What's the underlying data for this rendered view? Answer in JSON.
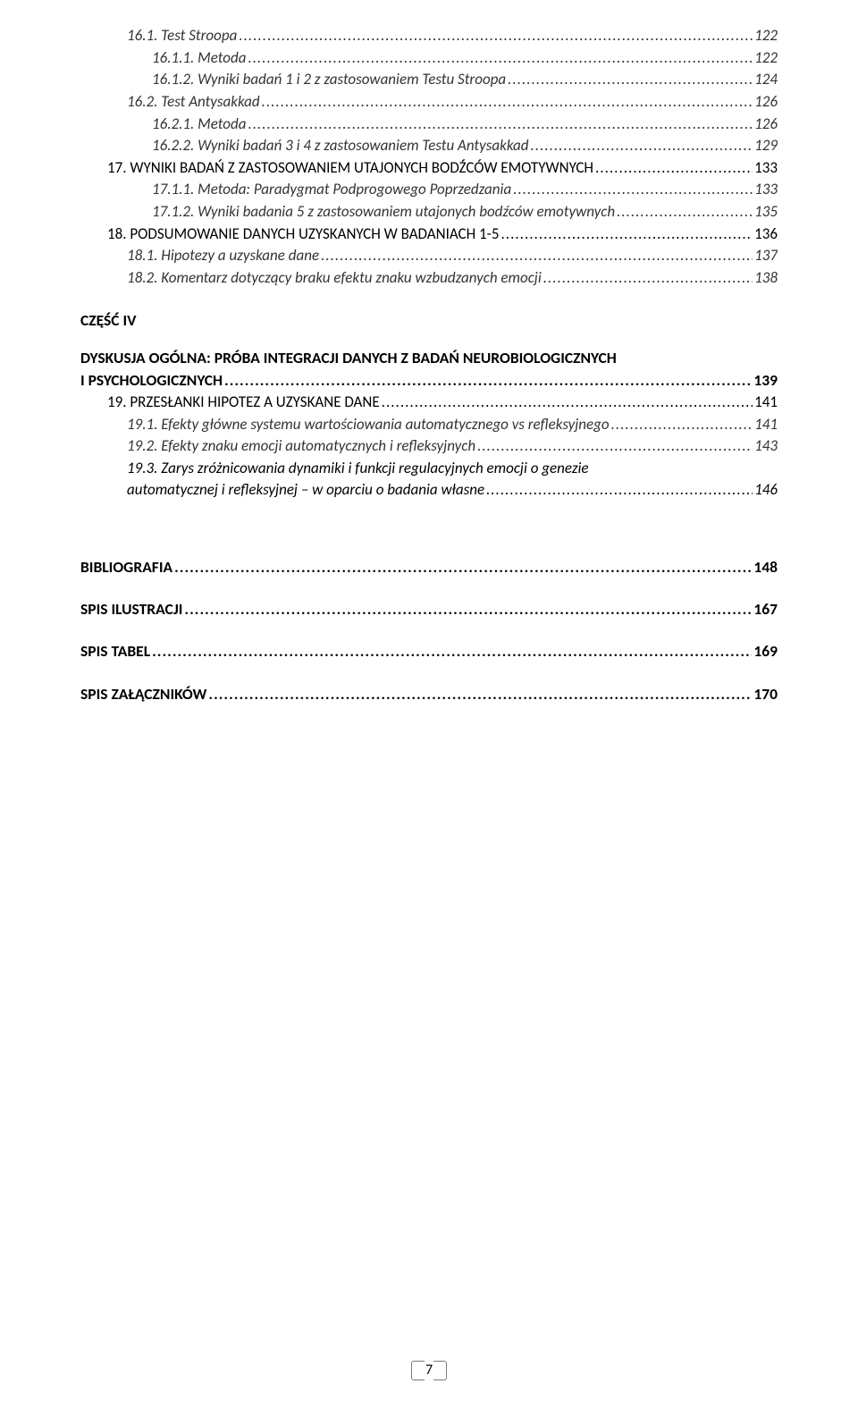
{
  "entries": [
    {
      "level": "lvl-2",
      "label": "16.1.   Test Stroopa",
      "page": "122"
    },
    {
      "level": "lvl-2",
      "label": "16.1.1.   Metoda",
      "page": "122",
      "indent_extra": 28
    },
    {
      "level": "lvl-2",
      "label": "16.1.2.   Wyniki badań 1 i 2 z zastosowaniem Testu Stroopa",
      "page": "124",
      "indent_extra": 28
    },
    {
      "level": "lvl-2",
      "label": "16.2.   Test Antysakkad",
      "page": "126"
    },
    {
      "level": "lvl-2",
      "label": "16.2.1.   Metoda",
      "page": "126",
      "indent_extra": 28
    },
    {
      "level": "lvl-2",
      "label": "16.2.2.   Wyniki badań 3 i 4 z zastosowaniem Testu Antysakkad",
      "page": "129",
      "indent_extra": 28
    },
    {
      "level": "lvl-1",
      "label": "17.   WYNIKI BADAŃ Z ZASTOSOWANIEM UTAJONYCH BODŹCÓW EMOTYWNYCH",
      "page": "133",
      "smallcaps": true
    },
    {
      "level": "lvl-2",
      "label": "17.1.1.   Metoda: Paradygmat Podprogowego Poprzedzania",
      "page": "133",
      "indent_extra": 28
    },
    {
      "level": "lvl-2",
      "label": "17.1.2.   Wyniki badania 5 z zastosowaniem utajonych bodźców emotywnych",
      "page": "135",
      "indent_extra": 28
    },
    {
      "level": "lvl-1",
      "label": "18.   PODSUMOWANIE DANYCH UZYSKANYCH W BADANIACH 1-5",
      "page": "136",
      "smallcaps": true
    },
    {
      "level": "lvl-2",
      "label": "18.1.   Hipotezy a uzyskane dane",
      "page": "137"
    },
    {
      "level": "lvl-2",
      "label": "18.2.   Komentarz dotyczący braku efektu znaku wzbudzanych emocji",
      "page": "138"
    }
  ],
  "part4_label": "CZĘŚĆ IV",
  "part4_title_l1": "DYSKUSJA OGÓLNA: PRÓBA INTEGRACJI DANYCH Z BADAŃ NEUROBIOLOGICZNYCH",
  "part4_title_l2_label": "I PSYCHOLOGICZNYCH",
  "part4_title_page": "139",
  "entries2": [
    {
      "level": "lvl-1",
      "label": "19.   PRZESŁANKI HIPOTEZ A UZYSKANE DANE",
      "page": "141",
      "smallcaps": true
    },
    {
      "level": "lvl-2",
      "label": "19.1.   Efekty główne systemu wartościowania automatycznego vs refleksyjnego",
      "page": "141"
    },
    {
      "level": "lvl-2",
      "label": "19.2.   Efekty znaku emocji automatycznych i refleksyjnych",
      "page": "143"
    }
  ],
  "entry_19_3_l1": "19.3.   Zarys zróżnicowania dynamiki i funkcji regulacyjnych emocji o genezie",
  "entry_19_3_l2_label": "automatycznej i refleksyjnej – w oparciu o badania własne",
  "entry_19_3_page": "146",
  "bottom": [
    {
      "label": "BIBLIOGRAFIA",
      "page": "148"
    },
    {
      "label": "SPIS ILUSTRACJI",
      "page": "167"
    },
    {
      "label": "SPIS TABEL",
      "page": "169"
    },
    {
      "label": "SPIS ZAŁĄCZNIKÓW",
      "page": "170"
    }
  ],
  "page_number": "7"
}
